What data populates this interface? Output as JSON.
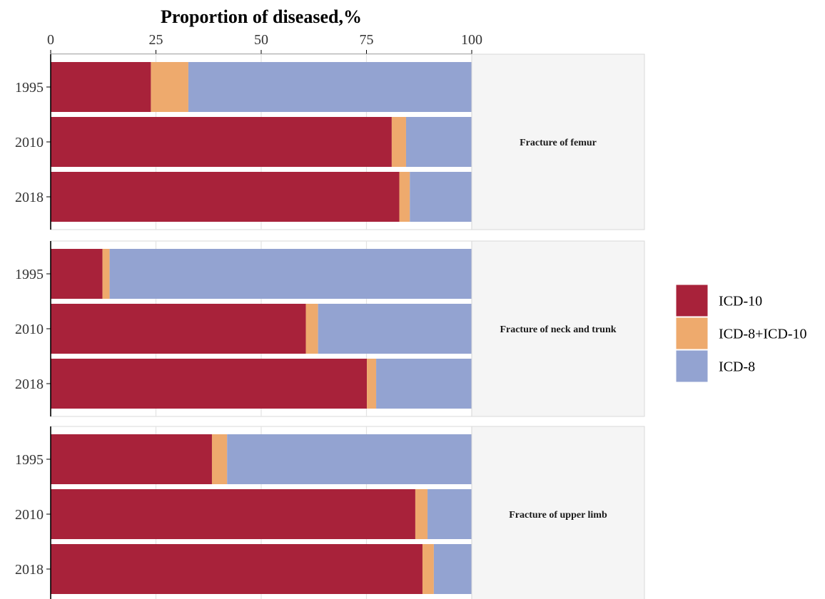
{
  "chart_data": {
    "type": "bar",
    "orientation": "horizontal",
    "stacked": true,
    "title": "Proportion of diseased,%",
    "x_ticks": [
      "0",
      "25",
      "50",
      "75",
      "100"
    ],
    "xlim": [
      0,
      100
    ],
    "categories": [
      "1995",
      "2010",
      "2018"
    ],
    "series_order": [
      "ICD-10",
      "ICD-8+ICD-10",
      "ICD-8"
    ],
    "colors": {
      "ICD-10": "#a8223a",
      "ICD-8+ICD-10": "#eeaa6d",
      "ICD-8": "#93a3d1"
    },
    "legend": {
      "position": "right",
      "entries": [
        "ICD-10",
        "ICD-8+ICD-10",
        "ICD-8"
      ]
    },
    "panels": [
      {
        "label": "Fracture of femur",
        "bars": [
          {
            "year": "1995",
            "ICD-10": 23.8,
            "ICD-8+ICD-10": 8.9,
            "ICD-8": 67.3
          },
          {
            "year": "2010",
            "ICD-10": 81.0,
            "ICD-8+ICD-10": 3.4,
            "ICD-8": 15.6
          },
          {
            "year": "2018",
            "ICD-10": 82.8,
            "ICD-8+ICD-10": 2.5,
            "ICD-8": 14.7
          }
        ]
      },
      {
        "label": "Fracture of neck and trunk",
        "bars": [
          {
            "year": "1995",
            "ICD-10": 12.3,
            "ICD-8+ICD-10": 1.7,
            "ICD-8": 86.0
          },
          {
            "year": "2010",
            "ICD-10": 60.6,
            "ICD-8+ICD-10": 2.9,
            "ICD-8": 36.5
          },
          {
            "year": "2018",
            "ICD-10": 75.1,
            "ICD-8+ICD-10": 2.2,
            "ICD-8": 22.7
          }
        ]
      },
      {
        "label": "Fracture of upper limb",
        "bars": [
          {
            "year": "1995",
            "ICD-10": 38.3,
            "ICD-8+ICD-10": 3.6,
            "ICD-8": 58.1
          },
          {
            "year": "2010",
            "ICD-10": 86.6,
            "ICD-8+ICD-10": 2.9,
            "ICD-8": 10.5
          },
          {
            "year": "2018",
            "ICD-10": 88.3,
            "ICD-8+ICD-10": 2.7,
            "ICD-8": 9.0
          }
        ]
      }
    ],
    "grid": true
  }
}
